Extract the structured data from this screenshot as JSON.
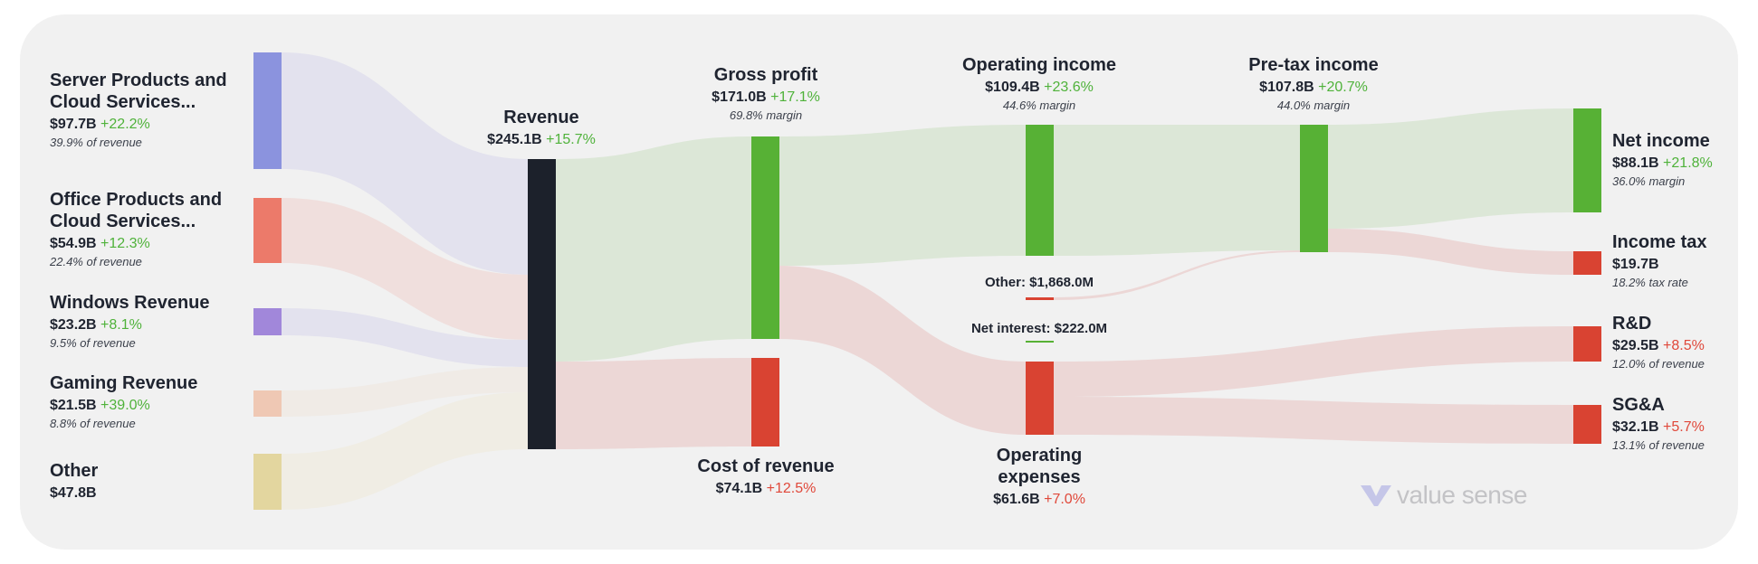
{
  "chart_data": {
    "type": "sankey",
    "currency_unit": "B",
    "nodes": [
      {
        "id": "server",
        "label": "Server Products and Cloud Services...",
        "value": "$97.7B",
        "change": "+22.2%",
        "change_color": "#4fb23a",
        "note": "39.9% of revenue",
        "color": "#8b93de"
      },
      {
        "id": "office",
        "label": "Office Products and Cloud Services...",
        "value": "$54.9B",
        "change": "+12.3%",
        "change_color": "#4fb23a",
        "note": "22.4% of revenue",
        "color": "#ec7a6a"
      },
      {
        "id": "windows",
        "label": "Windows Revenue",
        "value": "$23.2B",
        "change": "+8.1%",
        "change_color": "#4fb23a",
        "note": "9.5% of revenue",
        "color": "#a187da"
      },
      {
        "id": "gaming",
        "label": "Gaming Revenue",
        "value": "$21.5B",
        "change": "+39.0%",
        "change_color": "#4fb23a",
        "note": "8.8% of revenue",
        "color": "#efc8b4"
      },
      {
        "id": "other_rev",
        "label": "Other",
        "value": "$47.8B",
        "color": "#e3d69f"
      },
      {
        "id": "revenue",
        "label": "Revenue",
        "value": "$245.1B",
        "change": "+15.7%",
        "change_color": "#4fb23a",
        "color": "#1c212b"
      },
      {
        "id": "gross",
        "label": "Gross profit",
        "value": "$171.0B",
        "change": "+17.1%",
        "change_color": "#4fb23a",
        "note": "69.8% margin",
        "color": "#57b135"
      },
      {
        "id": "cost",
        "label": "Cost of revenue",
        "value": "$74.1B",
        "change": "+12.5%",
        "change_color": "#e0483a",
        "color": "#d94332"
      },
      {
        "id": "opinc",
        "label": "Operating income",
        "value": "$109.4B",
        "change": "+23.6%",
        "change_color": "#4fb23a",
        "note": "44.6% margin",
        "color": "#57b135"
      },
      {
        "id": "opex",
        "label": "Operating expenses",
        "value": "$61.6B",
        "change": "+7.0%",
        "change_color": "#e0483a",
        "color": "#d94332"
      },
      {
        "id": "other_inc",
        "label": "Other: $1,868.0M",
        "color": "#d94332"
      },
      {
        "id": "net_interest",
        "label": "Net interest: $222.0M",
        "color": "#57b135"
      },
      {
        "id": "pretax",
        "label": "Pre-tax income",
        "value": "$107.8B",
        "change": "+20.7%",
        "change_color": "#4fb23a",
        "note": "44.0% margin",
        "color": "#57b135"
      },
      {
        "id": "net",
        "label": "Net income",
        "value": "$88.1B",
        "change": "+21.8%",
        "change_color": "#4fb23a",
        "note": "36.0% margin",
        "color": "#57b135"
      },
      {
        "id": "tax",
        "label": "Income tax",
        "value": "$19.7B",
        "note": "18.2% tax rate",
        "color": "#d94332"
      },
      {
        "id": "rnd",
        "label": "R&D",
        "value": "$29.5B",
        "change": "+8.5%",
        "change_color": "#e0483a",
        "note": "12.0% of revenue",
        "color": "#d94332"
      },
      {
        "id": "sga",
        "label": "SG&A",
        "value": "$32.1B",
        "change": "+5.7%",
        "change_color": "#e0483a",
        "note": "13.1% of revenue",
        "color": "#d94332"
      }
    ],
    "links": [
      {
        "source": "server",
        "target": "revenue",
        "value": 97.7
      },
      {
        "source": "office",
        "target": "revenue",
        "value": 54.9
      },
      {
        "source": "windows",
        "target": "revenue",
        "value": 23.2
      },
      {
        "source": "gaming",
        "target": "revenue",
        "value": 21.5
      },
      {
        "source": "other_rev",
        "target": "revenue",
        "value": 47.8
      },
      {
        "source": "revenue",
        "target": "gross",
        "value": 171.0
      },
      {
        "source": "revenue",
        "target": "cost",
        "value": 74.1
      },
      {
        "source": "gross",
        "target": "opinc",
        "value": 109.4
      },
      {
        "source": "gross",
        "target": "opex",
        "value": 61.6
      },
      {
        "source": "opinc",
        "target": "pretax",
        "value": 107.8
      },
      {
        "source": "other_inc",
        "target": "pretax",
        "value": 1.868
      },
      {
        "source": "net_interest",
        "target": "pretax",
        "value": 0.222
      },
      {
        "source": "pretax",
        "target": "net",
        "value": 88.1
      },
      {
        "source": "pretax",
        "target": "tax",
        "value": 19.7
      },
      {
        "source": "opex",
        "target": "rnd",
        "value": 29.5
      },
      {
        "source": "opex",
        "target": "sga",
        "value": 32.1
      }
    ],
    "flow_colors": {
      "green": "#dce7d7",
      "red": "#ecd7d6",
      "server": "#e3e2ee",
      "office": "#f0dfdd",
      "windows": "#e3e2ee",
      "gaming": "#f0ebe6",
      "other": "#f0ede4"
    }
  },
  "watermark": "value sense",
  "labels": {
    "server_l1": "Server Products and",
    "server_l2": "Cloud Services...",
    "office_l1": "Office Products and",
    "office_l2": "Cloud Services...",
    "opex_l1": "Operating",
    "opex_l2": "expenses"
  }
}
